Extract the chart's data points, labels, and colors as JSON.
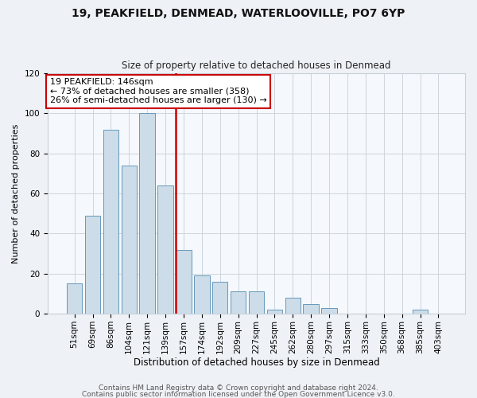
{
  "title": "19, PEAKFIELD, DENMEAD, WATERLOOVILLE, PO7 6YP",
  "subtitle": "Size of property relative to detached houses in Denmead",
  "xlabel": "Distribution of detached houses by size in Denmead",
  "ylabel": "Number of detached properties",
  "bar_color": "#ccdce8",
  "bar_edge_color": "#6699bb",
  "categories": [
    "51sqm",
    "69sqm",
    "86sqm",
    "104sqm",
    "121sqm",
    "139sqm",
    "157sqm",
    "174sqm",
    "192sqm",
    "209sqm",
    "227sqm",
    "245sqm",
    "262sqm",
    "280sqm",
    "297sqm",
    "315sqm",
    "333sqm",
    "350sqm",
    "368sqm",
    "385sqm",
    "403sqm"
  ],
  "values": [
    15,
    49,
    92,
    74,
    100,
    64,
    32,
    19,
    16,
    11,
    11,
    2,
    8,
    5,
    3,
    0,
    0,
    0,
    0,
    2,
    0
  ],
  "ylim": [
    0,
    120
  ],
  "yticks": [
    0,
    20,
    40,
    60,
    80,
    100,
    120
  ],
  "vline_x_idx": 6,
  "vline_color": "#cc0000",
  "annotation_line1": "19 PEAKFIELD: 146sqm",
  "annotation_line2": "← 73% of detached houses are smaller (358)",
  "annotation_line3": "26% of semi-detached houses are larger (130) →",
  "annotation_box_edgecolor": "#cc0000",
  "annotation_box_facecolor": "#ffffff",
  "footer_line1": "Contains HM Land Registry data © Crown copyright and database right 2024.",
  "footer_line2": "Contains public sector information licensed under the Open Government Licence v3.0.",
  "background_color": "#eef2f7",
  "plot_bg_color": "#f5f8fc",
  "grid_color": "#c8d0d8",
  "title_fontsize": 10,
  "subtitle_fontsize": 8.5,
  "xlabel_fontsize": 8.5,
  "ylabel_fontsize": 8,
  "tick_fontsize": 7.5,
  "annotation_fontsize": 8,
  "footer_fontsize": 6.5
}
